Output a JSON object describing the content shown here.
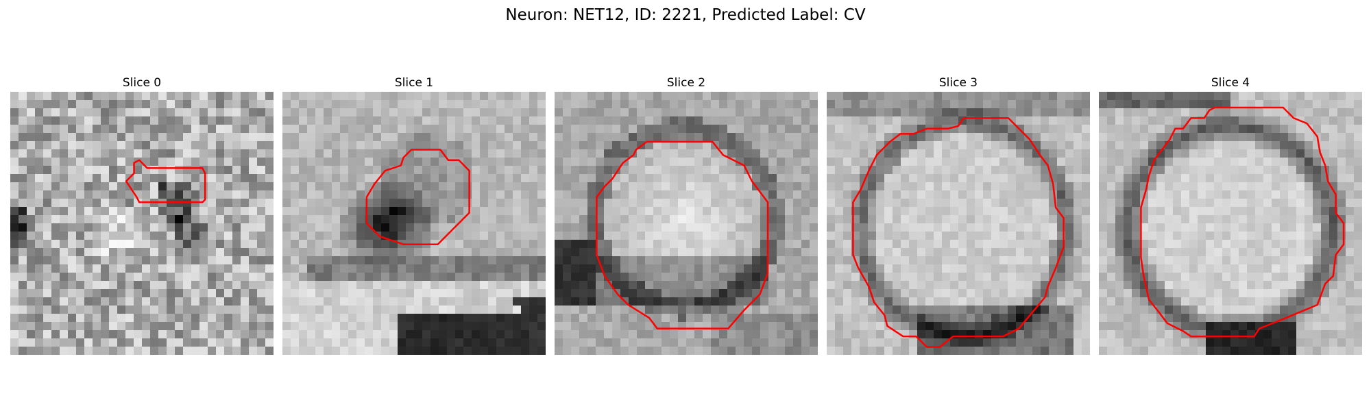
{
  "figure": {
    "title": "Neuron: NET12, ID: 2221, Predicted Label: CV"
  },
  "colors": {
    "contour": "#ff0000",
    "background": "#ffffff",
    "colormap": "gray"
  },
  "slices": [
    {
      "label": "Slice 0"
    },
    {
      "label": "Slice 1"
    },
    {
      "label": "Slice 2"
    },
    {
      "label": "Slice 3"
    },
    {
      "label": "Slice 4"
    }
  ]
}
